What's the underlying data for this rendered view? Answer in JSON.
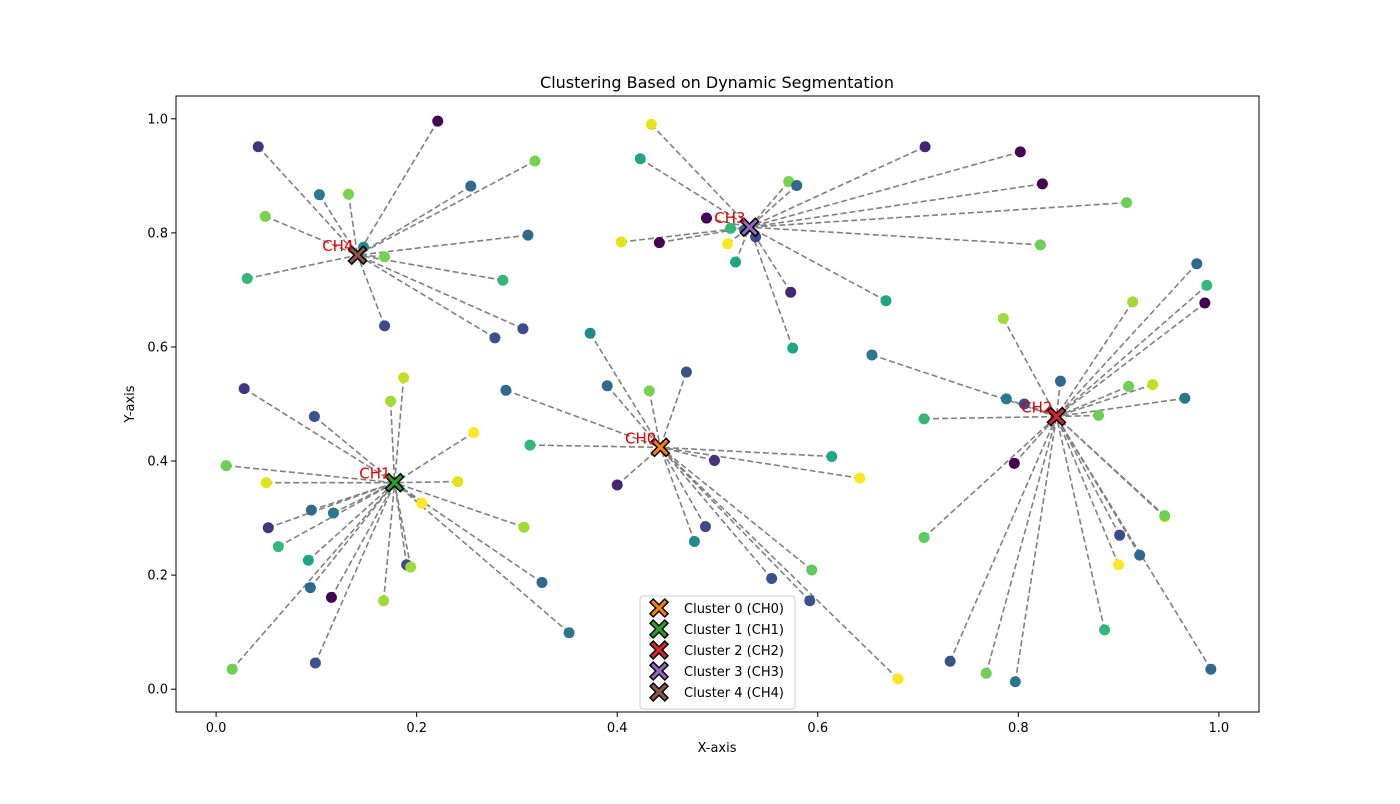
{
  "chart_data": {
    "type": "scatter",
    "title": "Clustering Based on Dynamic Segmentation",
    "xlabel": "X-axis",
    "ylabel": "Y-axis",
    "xlim": [
      -0.04,
      1.04
    ],
    "ylim": [
      -0.04,
      1.04
    ],
    "xticks": [
      "0.0",
      "0.2",
      "0.4",
      "0.6",
      "0.8",
      "1.0"
    ],
    "yticks": [
      "0.0",
      "0.2",
      "0.4",
      "0.6",
      "0.8",
      "1.0"
    ],
    "grid": false,
    "legend_position": "bottom-center",
    "line_color": "#808080",
    "clusters": [
      {
        "id": 0,
        "legend": "Cluster 0 (CH0)",
        "head_label": "CH0",
        "color": "#ff7f0e",
        "head": [
          0.443,
          0.424
        ],
        "members": [
          [
            0.373,
            0.624,
            "#238a8d"
          ],
          [
            0.39,
            0.532,
            "#31688e"
          ],
          [
            0.432,
            0.523,
            "#7ad151"
          ],
          [
            0.469,
            0.556,
            "#3b528b"
          ],
          [
            0.289,
            0.524,
            "#31688e"
          ],
          [
            0.313,
            0.428,
            "#35b779"
          ],
          [
            0.614,
            0.408,
            "#21a685"
          ],
          [
            0.642,
            0.37,
            "#fde725"
          ],
          [
            0.497,
            0.401,
            "#46327e"
          ],
          [
            0.4,
            0.358,
            "#482475"
          ],
          [
            0.477,
            0.259,
            "#238a8d"
          ],
          [
            0.488,
            0.285,
            "#3e4a89"
          ],
          [
            0.554,
            0.194,
            "#3b528b"
          ],
          [
            0.594,
            0.209,
            "#5ec962"
          ],
          [
            0.592,
            0.155,
            "#3b528b"
          ],
          [
            0.68,
            0.018,
            "#fde725"
          ]
        ]
      },
      {
        "id": 1,
        "legend": "Cluster 1 (CH1)",
        "head_label": "CH1",
        "color": "#2ca02c",
        "head": [
          0.178,
          0.362
        ],
        "members": [
          [
            0.028,
            0.527,
            "#46327e"
          ],
          [
            0.098,
            0.478,
            "#3b528b"
          ],
          [
            0.174,
            0.505,
            "#a0da39"
          ],
          [
            0.187,
            0.546,
            "#c2df23"
          ],
          [
            0.257,
            0.45,
            "#fde725"
          ],
          [
            0.01,
            0.392,
            "#6ece58"
          ],
          [
            0.05,
            0.362,
            "#e2e418"
          ],
          [
            0.241,
            0.364,
            "#e2e418"
          ],
          [
            0.205,
            0.326,
            "#fde725"
          ],
          [
            0.095,
            0.314,
            "#31688e"
          ],
          [
            0.117,
            0.309,
            "#2a788e"
          ],
          [
            0.052,
            0.283,
            "#46327e"
          ],
          [
            0.062,
            0.25,
            "#35b779"
          ],
          [
            0.092,
            0.226,
            "#21a685"
          ],
          [
            0.094,
            0.178,
            "#31688e"
          ],
          [
            0.307,
            0.284,
            "#a0da39"
          ],
          [
            0.325,
            0.187,
            "#31688e"
          ],
          [
            0.352,
            0.099,
            "#2a788e"
          ],
          [
            0.19,
            0.218,
            "#3e4a89"
          ],
          [
            0.194,
            0.214,
            "#a0da39"
          ],
          [
            0.115,
            0.161,
            "#440154"
          ],
          [
            0.167,
            0.155,
            "#a0da39"
          ],
          [
            0.099,
            0.046,
            "#3b528b"
          ],
          [
            0.016,
            0.035,
            "#6ece58"
          ]
        ]
      },
      {
        "id": 2,
        "legend": "Cluster 2 (CH2)",
        "head_label": "CH2",
        "color": "#d62728",
        "head": [
          0.838,
          0.478
        ],
        "members": [
          [
            0.978,
            0.746,
            "#31688e"
          ],
          [
            0.988,
            0.708,
            "#35b779"
          ],
          [
            0.986,
            0.677,
            "#440154"
          ],
          [
            0.914,
            0.679,
            "#a0da39"
          ],
          [
            0.785,
            0.65,
            "#a0da39"
          ],
          [
            0.654,
            0.586,
            "#2a788e"
          ],
          [
            0.842,
            0.54,
            "#31688e"
          ],
          [
            0.788,
            0.509,
            "#2a788e"
          ],
          [
            0.806,
            0.5,
            "#3e4a89"
          ],
          [
            0.934,
            0.534,
            "#c2df23"
          ],
          [
            0.91,
            0.531,
            "#6ece58"
          ],
          [
            0.966,
            0.51,
            "#2a788e"
          ],
          [
            0.88,
            0.48,
            "#6ece58"
          ],
          [
            0.706,
            0.474,
            "#35b779"
          ],
          [
            0.796,
            0.396,
            "#440154"
          ],
          [
            0.706,
            0.266,
            "#5ec962"
          ],
          [
            0.946,
            0.302,
            "#fde725"
          ],
          [
            0.946,
            0.304,
            "#6ece58"
          ],
          [
            0.901,
            0.27,
            "#3e4a89"
          ],
          [
            0.921,
            0.235,
            "#31688e"
          ],
          [
            0.9,
            0.218,
            "#fde725"
          ],
          [
            0.886,
            0.104,
            "#35b779"
          ],
          [
            0.732,
            0.049,
            "#3b528b"
          ],
          [
            0.768,
            0.028,
            "#6ece58"
          ],
          [
            0.797,
            0.013,
            "#2a788e"
          ],
          [
            0.992,
            0.035,
            "#31688e"
          ]
        ]
      },
      {
        "id": 3,
        "legend": "Cluster 3 (CH3)",
        "head_label": "CH3",
        "color": "#9467bd",
        "head": [
          0.532,
          0.81
        ],
        "members": [
          [
            0.434,
            0.99,
            "#e2e418"
          ],
          [
            0.423,
            0.93,
            "#21a685"
          ],
          [
            0.707,
            0.951,
            "#482475"
          ],
          [
            0.802,
            0.942,
            "#440154"
          ],
          [
            0.824,
            0.886,
            "#440154"
          ],
          [
            0.571,
            0.89,
            "#7ad151"
          ],
          [
            0.579,
            0.883,
            "#31688e"
          ],
          [
            0.489,
            0.826,
            "#440154"
          ],
          [
            0.908,
            0.853,
            "#6ece58"
          ],
          [
            0.513,
            0.808,
            "#35b779"
          ],
          [
            0.527,
            0.805,
            "#31688e"
          ],
          [
            0.538,
            0.793,
            "#3e4a89"
          ],
          [
            0.404,
            0.784,
            "#e2e418"
          ],
          [
            0.442,
            0.783,
            "#440154"
          ],
          [
            0.51,
            0.781,
            "#fde725"
          ],
          [
            0.822,
            0.779,
            "#6ece58"
          ],
          [
            0.518,
            0.749,
            "#21a685"
          ],
          [
            0.573,
            0.696,
            "#482475"
          ],
          [
            0.668,
            0.681,
            "#21a685"
          ],
          [
            0.575,
            0.598,
            "#21a685"
          ]
        ]
      },
      {
        "id": 4,
        "legend": "Cluster 4 (CH4)",
        "head_label": "CH4",
        "color": "#8c564b",
        "head": [
          0.141,
          0.761
        ],
        "members": [
          [
            0.221,
            0.996,
            "#440154"
          ],
          [
            0.042,
            0.951,
            "#46327e"
          ],
          [
            0.318,
            0.926,
            "#7ad151"
          ],
          [
            0.103,
            0.867,
            "#2a788e"
          ],
          [
            0.132,
            0.868,
            "#7ad151"
          ],
          [
            0.254,
            0.882,
            "#31688e"
          ],
          [
            0.049,
            0.829,
            "#7ad151"
          ],
          [
            0.311,
            0.796,
            "#31688e"
          ],
          [
            0.147,
            0.775,
            "#238a8d"
          ],
          [
            0.168,
            0.758,
            "#7ad151"
          ],
          [
            0.031,
            0.72,
            "#35b779"
          ],
          [
            0.286,
            0.717,
            "#35b779"
          ],
          [
            0.168,
            0.637,
            "#3e4a89"
          ],
          [
            0.306,
            0.632,
            "#3e4a89"
          ],
          [
            0.278,
            0.616,
            "#3b528b"
          ]
        ]
      }
    ]
  }
}
